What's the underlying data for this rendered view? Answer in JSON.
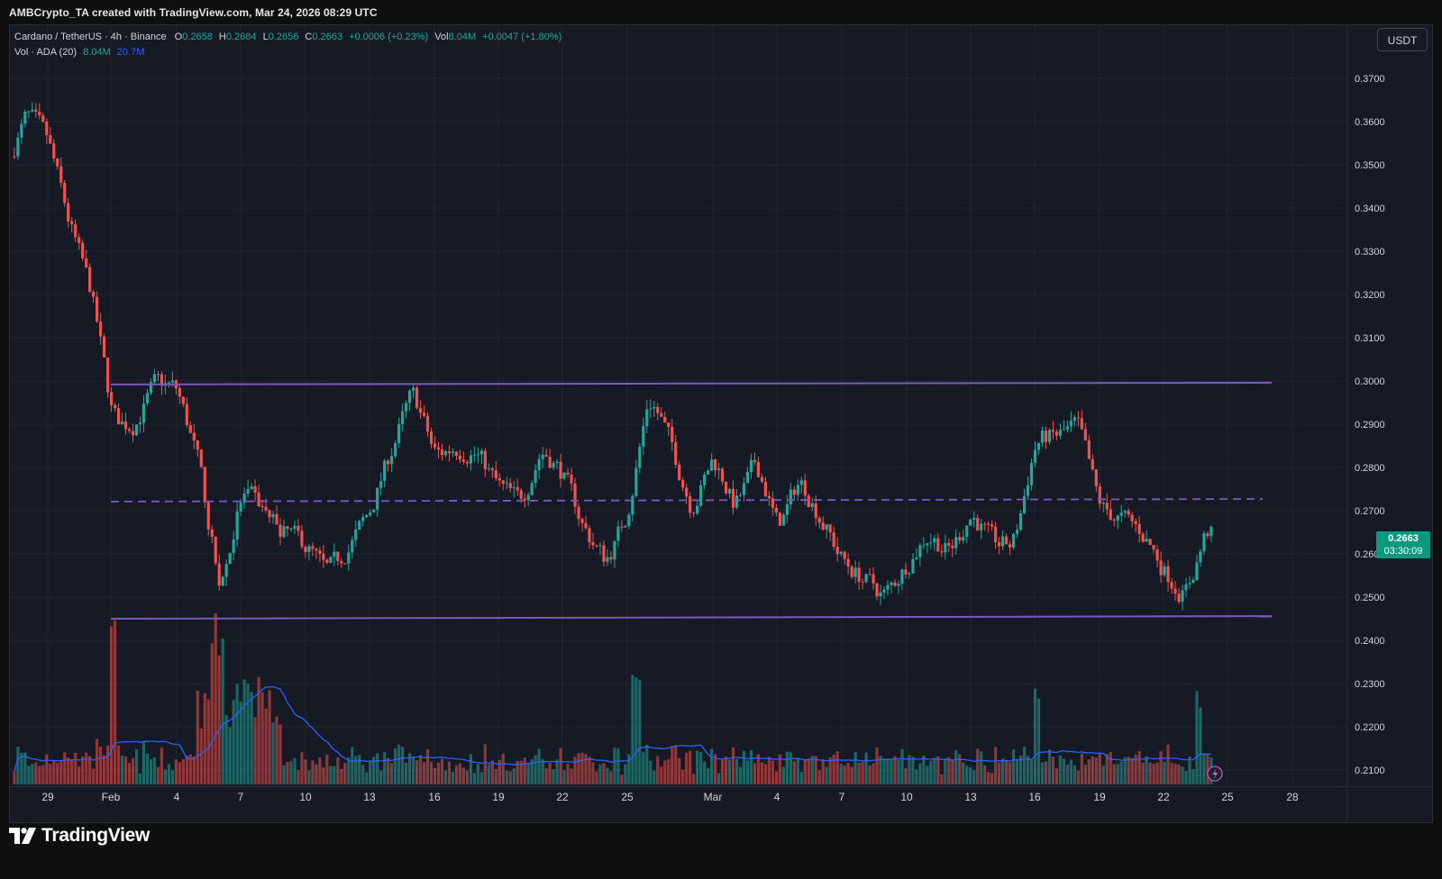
{
  "header": {
    "caption": "AMBCrypto_TA created with TradingView.com, Mar 24, 2026 08:29 UTC"
  },
  "legend": {
    "symbol": "Cardano / TetherUS · 4h · Binance",
    "open_label": "O",
    "open": "0.2658",
    "high_label": "H",
    "high": "0.2684",
    "low_label": "L",
    "low": "0.2656",
    "close_label": "C",
    "close": "0.2663",
    "change": "+0.0006 (+0.23%)",
    "vol_label": "Vol",
    "vol": "8.04M",
    "vol_change": "+0.0047 (+1.80%)",
    "indicator": "Vol · ADA (20)",
    "indicator_value": "8.04M",
    "indicator_ma": "20.7M"
  },
  "toolbar": {
    "currency": "USDT"
  },
  "price_tag": {
    "price": "0.2663",
    "countdown": "03:30:09"
  },
  "branding": {
    "logo_text": "TradingView"
  },
  "colors": {
    "background": "#161a25",
    "up": "#26a69a",
    "down": "#ef5350",
    "level_line": "#7e57c2",
    "volume_ma": "#2962ff"
  },
  "chart_data": {
    "type": "candlestick",
    "series_name": "Cardano / TetherUS · 4h · Binance",
    "y_axis": {
      "ticks": [
        "0.3700",
        "0.3600",
        "0.3500",
        "0.3400",
        "0.3300",
        "0.3200",
        "0.3100",
        "0.3000",
        "0.2900",
        "0.2800",
        "0.2700",
        "0.2600",
        "0.2500",
        "0.2400",
        "0.2300",
        "0.2200",
        "0.2100"
      ]
    },
    "x_axis": {
      "ticks": [
        "29",
        "Feb",
        "4",
        "7",
        "10",
        "13",
        "16",
        "19",
        "22",
        "25",
        "Mar",
        "4",
        "7",
        "10",
        "13",
        "16",
        "19",
        "22",
        "25",
        "28"
      ]
    },
    "levels": [
      {
        "name": "resistance",
        "style": "solid",
        "from": "Feb 1",
        "to": "Mar 27",
        "start": 0.2992,
        "end": 0.2996
      },
      {
        "name": "midline",
        "style": "dashed",
        "from": "Feb 1",
        "to": "Mar 26",
        "start": 0.2721,
        "end": 0.2727
      },
      {
        "name": "support",
        "style": "solid",
        "from": "Feb 1",
        "to": "Mar 27",
        "start": 0.245,
        "end": 0.2456
      }
    ],
    "price_path": [
      [
        "Jan 27",
        0.35
      ],
      [
        "Jan 28",
        0.362
      ],
      [
        "Jan 29",
        0.355
      ],
      [
        "Jan 30",
        0.335
      ],
      [
        "Jan 31",
        0.32
      ],
      [
        "Feb 1",
        0.29
      ],
      [
        "Feb 2",
        0.29
      ],
      [
        "Feb 3",
        0.3
      ],
      [
        "Feb 4",
        0.298
      ],
      [
        "Feb 5",
        0.28
      ],
      [
        "Feb 6",
        0.25
      ],
      [
        "Feb 7",
        0.275
      ],
      [
        "Feb 8",
        0.27
      ],
      [
        "Feb 9",
        0.265
      ],
      [
        "Feb 10",
        0.262
      ],
      [
        "Feb 11",
        0.255
      ],
      [
        "Feb 12",
        0.262
      ],
      [
        "Feb 13",
        0.27
      ],
      [
        "Feb 14",
        0.285
      ],
      [
        "Feb 15",
        0.298
      ],
      [
        "Feb 16",
        0.282
      ],
      [
        "Feb 17",
        0.285
      ],
      [
        "Feb 18",
        0.283
      ],
      [
        "Feb 19",
        0.275
      ],
      [
        "Feb 20",
        0.272
      ],
      [
        "Feb 21",
        0.285
      ],
      [
        "Feb 22",
        0.278
      ],
      [
        "Feb 23",
        0.265
      ],
      [
        "Feb 24",
        0.258
      ],
      [
        "Feb 25",
        0.27
      ],
      [
        "Feb 26",
        0.298
      ],
      [
        "Feb 27",
        0.285
      ],
      [
        "Feb 28",
        0.27
      ],
      [
        "Mar 1",
        0.283
      ],
      [
        "Mar 2",
        0.27
      ],
      [
        "Mar 3",
        0.282
      ],
      [
        "Mar 4",
        0.265
      ],
      [
        "Mar 5",
        0.278
      ],
      [
        "Mar 6",
        0.268
      ],
      [
        "Mar 7",
        0.258
      ],
      [
        "Mar 8",
        0.254
      ],
      [
        "Mar 9",
        0.25
      ],
      [
        "Mar 10",
        0.258
      ],
      [
        "Mar 11",
        0.265
      ],
      [
        "Mar 12",
        0.26
      ],
      [
        "Mar 13",
        0.27
      ],
      [
        "Mar 14",
        0.262
      ],
      [
        "Mar 15",
        0.262
      ],
      [
        "Mar 16",
        0.287
      ],
      [
        "Mar 17",
        0.287
      ],
      [
        "Mar 18",
        0.29
      ],
      [
        "Mar 19",
        0.27
      ],
      [
        "Mar 20",
        0.268
      ],
      [
        "Mar 21",
        0.265
      ],
      [
        "Mar 22",
        0.256
      ],
      [
        "Mar 23",
        0.25
      ],
      [
        "Mar 24",
        0.2663
      ]
    ]
  }
}
